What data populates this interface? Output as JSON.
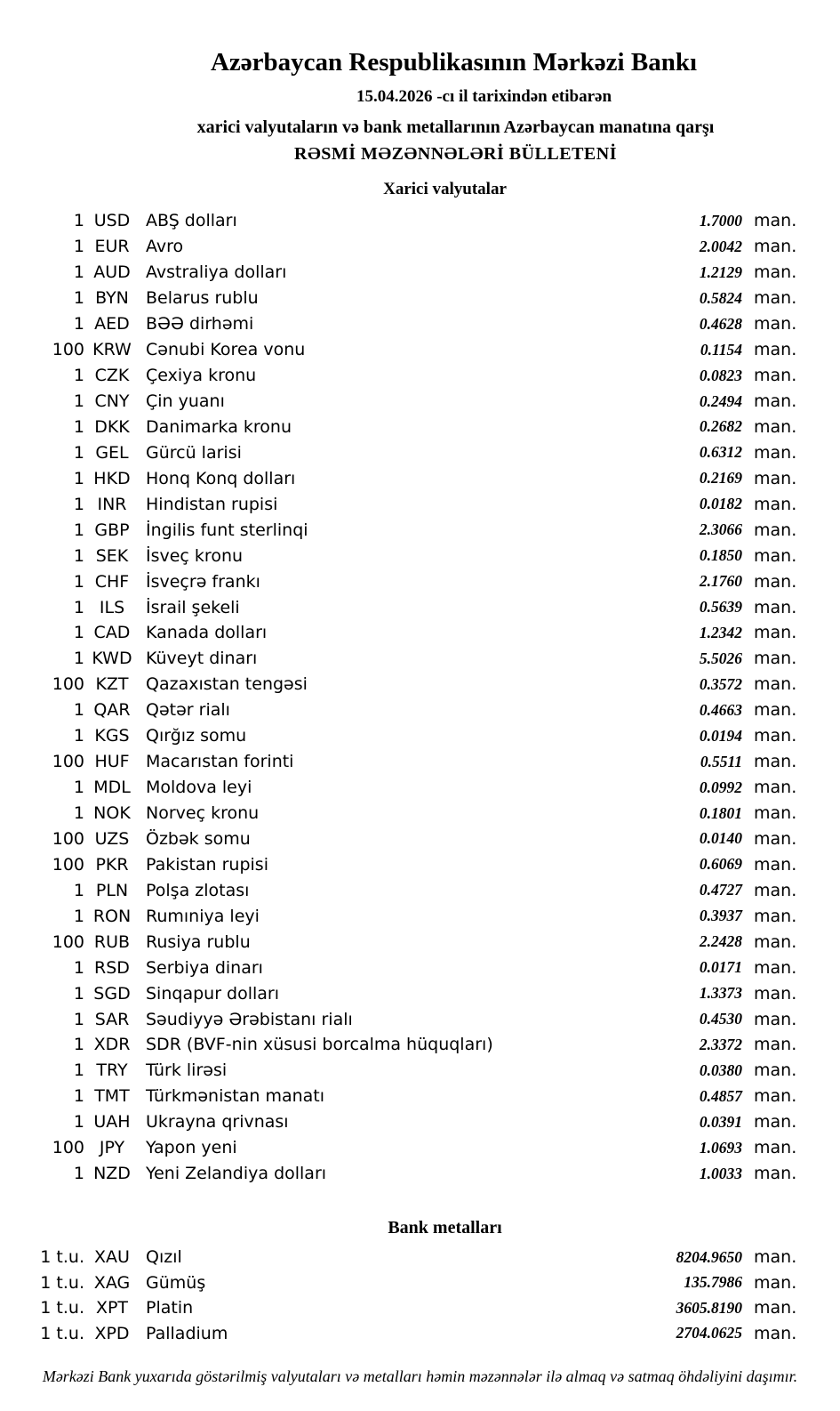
{
  "header": {
    "bank_title": "Azərbaycan Respublikasının Mərkəzi Bankı",
    "date_line": "15.04.2026 -cı il tarixindən etibarən",
    "subject_line": "xarici valyutaların və bank metallarının Azərbaycan manatına qarşı",
    "bulletin_title": "RƏSMİ MƏZƏNNƏLƏRİ BÜLLETENİ"
  },
  "currencies": {
    "section_title": "Xarici valyutalar",
    "unit_label": "man.",
    "rows": [
      {
        "qty": "1",
        "code": "USD",
        "name": "ABŞ dolları",
        "rate": "1.7000"
      },
      {
        "qty": "1",
        "code": "EUR",
        "name": "Avro",
        "rate": "2.0042"
      },
      {
        "qty": "1",
        "code": "AUD",
        "name": "Avstraliya dolları",
        "rate": "1.2129"
      },
      {
        "qty": "1",
        "code": "BYN",
        "name": "Belarus rublu",
        "rate": "0.5824"
      },
      {
        "qty": "1",
        "code": "AED",
        "name": "BƏƏ dirhəmi",
        "rate": "0.4628"
      },
      {
        "qty": "100",
        "code": "KRW",
        "name": "Cənubi Korea vonu",
        "rate": "0.1154"
      },
      {
        "qty": "1",
        "code": "CZK",
        "name": "Çexiya kronu",
        "rate": "0.0823"
      },
      {
        "qty": "1",
        "code": "CNY",
        "name": "Çin yuanı",
        "rate": "0.2494"
      },
      {
        "qty": "1",
        "code": "DKK",
        "name": "Danimarka kronu",
        "rate": "0.2682"
      },
      {
        "qty": "1",
        "code": "GEL",
        "name": "Gürcü larisi",
        "rate": "0.6312"
      },
      {
        "qty": "1",
        "code": "HKD",
        "name": "Honq Konq dolları",
        "rate": "0.2169"
      },
      {
        "qty": "1",
        "code": "INR",
        "name": "Hindistan rupisi",
        "rate": "0.0182"
      },
      {
        "qty": "1",
        "code": "GBP",
        "name": "İngilis funt sterlinqi",
        "rate": "2.3066"
      },
      {
        "qty": "1",
        "code": "SEK",
        "name": "İsveç kronu",
        "rate": "0.1850"
      },
      {
        "qty": "1",
        "code": "CHF",
        "name": "İsveçrə frankı",
        "rate": "2.1760"
      },
      {
        "qty": "1",
        "code": "ILS",
        "name": "İsrail şekeli",
        "rate": "0.5639"
      },
      {
        "qty": "1",
        "code": "CAD",
        "name": "Kanada dolları",
        "rate": "1.2342"
      },
      {
        "qty": "1",
        "code": "KWD",
        "name": "Küveyt dinarı",
        "rate": "5.5026"
      },
      {
        "qty": "100",
        "code": "KZT",
        "name": "Qazaxıstan tengəsi",
        "rate": "0.3572"
      },
      {
        "qty": "1",
        "code": "QAR",
        "name": "Qətər rialı",
        "rate": "0.4663"
      },
      {
        "qty": "1",
        "code": "KGS",
        "name": "Qırğız somu",
        "rate": "0.0194"
      },
      {
        "qty": "100",
        "code": "HUF",
        "name": "Macarıstan forinti",
        "rate": "0.5511"
      },
      {
        "qty": "1",
        "code": "MDL",
        "name": "Moldova leyi",
        "rate": "0.0992"
      },
      {
        "qty": "1",
        "code": "NOK",
        "name": "Norveç kronu",
        "rate": "0.1801"
      },
      {
        "qty": "100",
        "code": "UZS",
        "name": "Özbək somu",
        "rate": "0.0140"
      },
      {
        "qty": "100",
        "code": "PKR",
        "name": "Pakistan rupisi",
        "rate": "0.6069"
      },
      {
        "qty": "1",
        "code": "PLN",
        "name": "Polşa zlotası",
        "rate": "0.4727"
      },
      {
        "qty": "1",
        "code": "RON",
        "name": "Rumıniya leyi",
        "rate": "0.3937"
      },
      {
        "qty": "100",
        "code": "RUB",
        "name": "Rusiya rublu",
        "rate": "2.2428"
      },
      {
        "qty": "1",
        "code": "RSD",
        "name": "Serbiya dinarı",
        "rate": "0.0171"
      },
      {
        "qty": "1",
        "code": "SGD",
        "name": "Sinqapur dolları",
        "rate": "1.3373"
      },
      {
        "qty": "1",
        "code": "SAR",
        "name": "Səudiyyə Ərəbistanı rialı",
        "rate": "0.4530"
      },
      {
        "qty": "1",
        "code": "XDR",
        "name": "SDR (BVF-nin xüsusi borcalma hüquqları)",
        "rate": "2.3372"
      },
      {
        "qty": "1",
        "code": "TRY",
        "name": "Türk lirəsi",
        "rate": "0.0380"
      },
      {
        "qty": "1",
        "code": "TMT",
        "name": "Türkmənistan manatı",
        "rate": "0.4857"
      },
      {
        "qty": "1",
        "code": "UAH",
        "name": "Ukrayna qrivnası",
        "rate": "0.0391"
      },
      {
        "qty": "100",
        "code": "JPY",
        "name": "Yapon yeni",
        "rate": "1.0693"
      },
      {
        "qty": "1",
        "code": "NZD",
        "name": "Yeni Zelandiya dolları",
        "rate": "1.0033"
      }
    ]
  },
  "metals": {
    "section_title": "Bank metalları",
    "unit_label": "man.",
    "rows": [
      {
        "qty": "1 t.u.",
        "code": "XAU",
        "name": "Qızıl",
        "rate": "8204.9650"
      },
      {
        "qty": "1 t.u.",
        "code": "XAG",
        "name": "Gümüş",
        "rate": "135.7986"
      },
      {
        "qty": "1 t.u.",
        "code": "XPT",
        "name": "Platin",
        "rate": "3605.8190"
      },
      {
        "qty": "1 t.u.",
        "code": "XPD",
        "name": "Palladium",
        "rate": "2704.0625"
      }
    ]
  },
  "footer_note": "Mərkəzi Bank yuxarıda göstərilmiş valyutaları və metalları həmin məzənnələr ilə almaq və satmaq öhdəliyini daşımır."
}
